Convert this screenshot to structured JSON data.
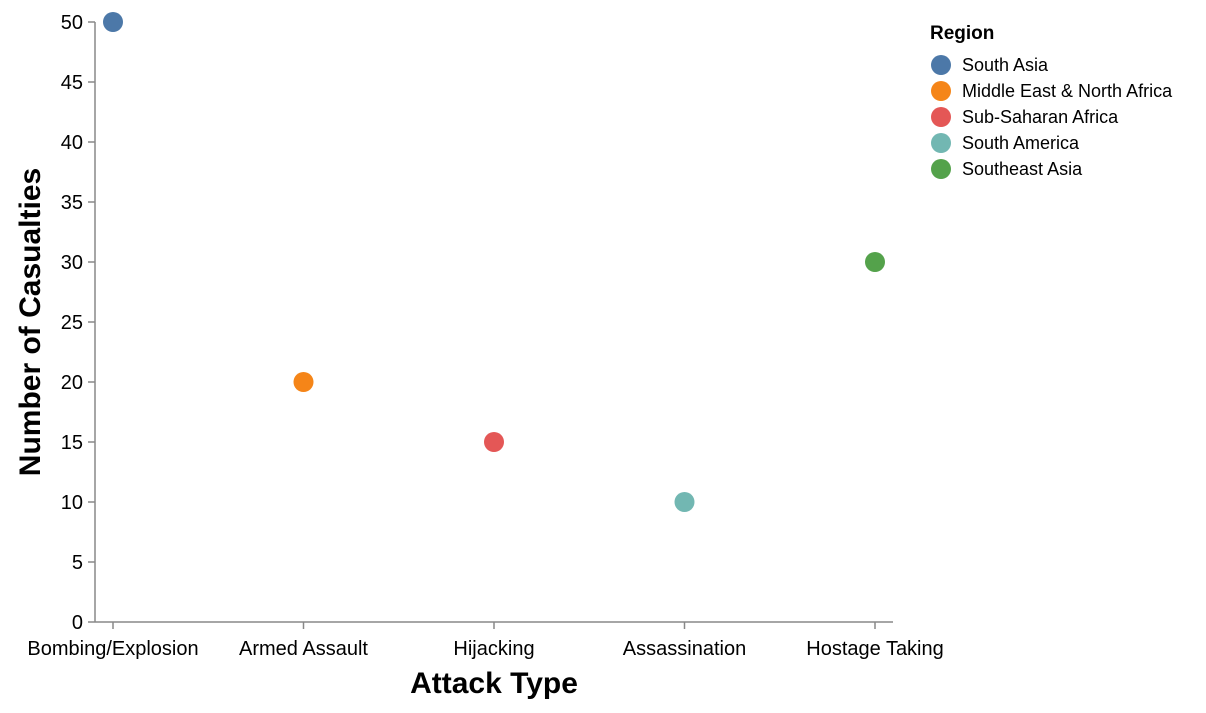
{
  "chart_data": {
    "type": "scatter",
    "xlabel": "Attack Type",
    "ylabel": "Number of Casualties",
    "categories": [
      "Bombing/Explosion",
      "Armed Assault",
      "Hijacking",
      "Assassination",
      "Hostage Taking"
    ],
    "ylim": [
      0,
      50
    ],
    "yticks": [
      0,
      5,
      10,
      15,
      20,
      25,
      30,
      35,
      40,
      45,
      50
    ],
    "grid": false,
    "legend": {
      "title": "Region",
      "placement": "top-right",
      "entries": [
        {
          "label": "South Asia",
          "color": "#4c78a8"
        },
        {
          "label": "Middle East & North Africa",
          "color": "#f58518"
        },
        {
          "label": "Sub-Saharan Africa",
          "color": "#e45756"
        },
        {
          "label": "South America",
          "color": "#72b7b2"
        },
        {
          "label": "Southeast Asia",
          "color": "#54a24b"
        }
      ]
    },
    "points": [
      {
        "x": "Bombing/Explosion",
        "y": 50,
        "region": "South Asia"
      },
      {
        "x": "Armed Assault",
        "y": 20,
        "region": "Middle East & North Africa"
      },
      {
        "x": "Hijacking",
        "y": 15,
        "region": "Sub-Saharan Africa"
      },
      {
        "x": "Assassination",
        "y": 10,
        "region": "South America"
      },
      {
        "x": "Hostage Taking",
        "y": 30,
        "region": "Southeast Asia"
      }
    ]
  }
}
